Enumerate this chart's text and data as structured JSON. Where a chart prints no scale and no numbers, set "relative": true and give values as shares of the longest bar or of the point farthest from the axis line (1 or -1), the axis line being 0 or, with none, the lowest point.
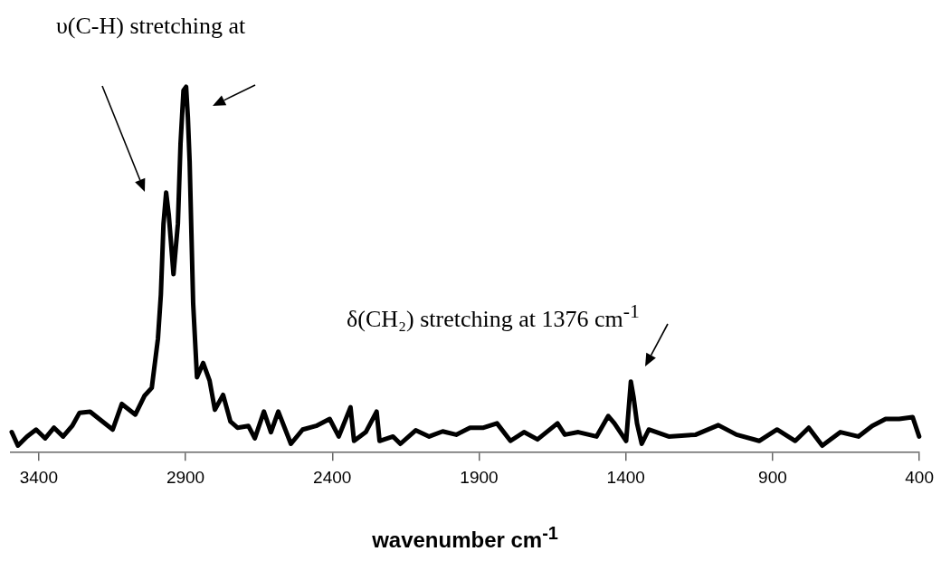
{
  "chart_data": {
    "type": "line",
    "xlabel": "wavenumber cm$^{-1}$",
    "relative": true,
    "annotations": [
      "υ(C-H) stretching at",
      "δ(CH₂) stretching at 1376 cm$^{-1}$"
    ],
    "xlim": [
      3495,
      400
    ],
    "xticks": [
      3400,
      2900,
      2400,
      1900,
      1400,
      900,
      400
    ],
    "grid": false,
    "legend": false,
    "marker": "none",
    "line_style": "solid",
    "series": [
      {
        "color": "#000000",
        "x": [
          3492,
          3471,
          3440,
          3409,
          3378,
          3348,
          3317,
          3286,
          3261,
          3225,
          3194,
          3148,
          3117,
          3071,
          3040,
          3015,
          2994,
          2984,
          2975,
          2966,
          2957,
          2941,
          2926,
          2917,
          2907,
          2898,
          2892,
          2886,
          2880,
          2874,
          2861,
          2840,
          2818,
          2800,
          2772,
          2747,
          2723,
          2686,
          2664,
          2633,
          2609,
          2584,
          2541,
          2501,
          2455,
          2409,
          2378,
          2338,
          2326,
          2286,
          2249,
          2239,
          2193,
          2168,
          2116,
          2070,
          2024,
          1978,
          1931,
          1885,
          1839,
          1793,
          1747,
          1701,
          1633,
          1608,
          1562,
          1500,
          1460,
          1439,
          1399,
          1383,
          1374,
          1362,
          1346,
          1322,
          1254,
          1162,
          1085,
          1023,
          946,
          885,
          823,
          777,
          731,
          669,
          608,
          561,
          515,
          469,
          423,
          401
        ],
        "values": [
          0.056,
          0.019,
          0.044,
          0.063,
          0.039,
          0.068,
          0.044,
          0.073,
          0.109,
          0.112,
          0.092,
          0.063,
          0.133,
          0.104,
          0.155,
          0.177,
          0.311,
          0.432,
          0.626,
          0.711,
          0.65,
          0.488,
          0.626,
          0.845,
          0.99,
          1,
          0.917,
          0.796,
          0.602,
          0.408,
          0.206,
          0.245,
          0.197,
          0.117,
          0.158,
          0.085,
          0.068,
          0.073,
          0.039,
          0.112,
          0.056,
          0.112,
          0.024,
          0.063,
          0.073,
          0.092,
          0.044,
          0.124,
          0.032,
          0.056,
          0.112,
          0.032,
          0.044,
          0.024,
          0.061,
          0.044,
          0.058,
          0.049,
          0.068,
          0.068,
          0.08,
          0.032,
          0.056,
          0.036,
          0.08,
          0.049,
          0.056,
          0.044,
          0.1,
          0.08,
          0.032,
          0.194,
          0.153,
          0.08,
          0.024,
          0.063,
          0.044,
          0.049,
          0.075,
          0.049,
          0.032,
          0.063,
          0.032,
          0.068,
          0.019,
          0.056,
          0.044,
          0.073,
          0.092,
          0.092,
          0.097,
          0.044
        ]
      }
    ]
  }
}
